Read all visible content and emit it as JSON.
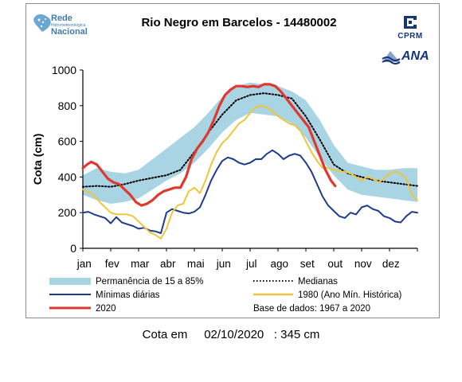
{
  "header": {
    "title": "Rio Negro em Barcelos - 14480002",
    "rede_logo": {
      "line1": "Rede",
      "line2": "Hidrometeorológica",
      "line3": "Nacional",
      "icon": "brazil-map-icon"
    },
    "cprm_logo": {
      "label": "CPRM",
      "icon": "cprm-emblem-icon",
      "color": "#15347a"
    },
    "ana_logo": {
      "label": "ANA",
      "icon": "ana-wave-icon",
      "color": "#15347a"
    }
  },
  "chart_data": {
    "type": "line",
    "title": "Rio Negro em Barcelos - 14480002",
    "ylabel": "Cota (cm)",
    "xlabel": "",
    "ylim": [
      0,
      1000
    ],
    "yticks": [
      0,
      200,
      400,
      600,
      800,
      1000
    ],
    "xlim": [
      0,
      12
    ],
    "months": [
      "jan",
      "fev",
      "mar",
      "abr",
      "mai",
      "jun",
      "jul",
      "ago",
      "set",
      "out",
      "nov",
      "dez"
    ],
    "band": {
      "name": "Permanência de 15 a 85%",
      "color": "#a9d4e4",
      "x": [
        0,
        0.5,
        1,
        1.5,
        2,
        2.5,
        3,
        3.5,
        4,
        4.5,
        5,
        5.5,
        6,
        6.5,
        7,
        7.5,
        8,
        8.5,
        9,
        9.5,
        10,
        10.5,
        11,
        11.5,
        12
      ],
      "upper": [
        410,
        450,
        430,
        420,
        440,
        500,
        560,
        620,
        680,
        760,
        850,
        910,
        930,
        920,
        910,
        880,
        830,
        720,
        580,
        480,
        460,
        440,
        440,
        450,
        450
      ],
      "lower": [
        300,
        270,
        250,
        260,
        280,
        330,
        380,
        420,
        480,
        560,
        650,
        720,
        760,
        750,
        740,
        700,
        620,
        510,
        410,
        330,
        300,
        290,
        280,
        270,
        260
      ]
    },
    "series": [
      {
        "name": "Medianas",
        "color": "#000000",
        "style": "dotted",
        "x": [
          0,
          0.5,
          1,
          1.5,
          2,
          2.5,
          3,
          3.5,
          4,
          4.5,
          5,
          5.5,
          6,
          6.5,
          7,
          7.5,
          8,
          8.5,
          9,
          9.5,
          10,
          10.5,
          11,
          11.5,
          12
        ],
        "y": [
          345,
          350,
          345,
          360,
          380,
          395,
          410,
          440,
          540,
          650,
          750,
          830,
          860,
          870,
          860,
          840,
          740,
          610,
          470,
          420,
          400,
          380,
          370,
          360,
          350
        ]
      },
      {
        "name": "Mínimas diárias",
        "color": "#1f3c8c",
        "style": "solid",
        "x": [
          0,
          0.2,
          0.4,
          0.6,
          0.8,
          1.0,
          1.2,
          1.4,
          1.6,
          1.8,
          2.0,
          2.2,
          2.4,
          2.6,
          2.8,
          3.0,
          3.2,
          3.4,
          3.6,
          3.8,
          4.0,
          4.2,
          4.4,
          4.6,
          4.8,
          5.0,
          5.2,
          5.4,
          5.6,
          5.8,
          6.0,
          6.2,
          6.4,
          6.6,
          6.8,
          7.0,
          7.2,
          7.4,
          7.6,
          7.8,
          8.0,
          8.2,
          8.4,
          8.6,
          8.8,
          9.0,
          9.2,
          9.4,
          9.6,
          9.8,
          10.0,
          10.2,
          10.4,
          10.6,
          10.8,
          11.0,
          11.2,
          11.4,
          11.6,
          11.8,
          12.0
        ],
        "y": [
          200,
          205,
          190,
          180,
          170,
          140,
          175,
          145,
          135,
          125,
          110,
          115,
          100,
          95,
          85,
          200,
          220,
          210,
          200,
          195,
          205,
          230,
          300,
          380,
          440,
          490,
          510,
          500,
          480,
          470,
          480,
          500,
          500,
          530,
          550,
          530,
          500,
          520,
          530,
          520,
          480,
          430,
          360,
          290,
          240,
          210,
          180,
          170,
          200,
          190,
          230,
          240,
          220,
          210,
          180,
          170,
          150,
          145,
          180,
          205,
          200
        ]
      },
      {
        "name": "1980 (Ano Mín. Histórica)",
        "color": "#f0c43c",
        "style": "solid",
        "x": [
          0,
          0.2,
          0.4,
          0.6,
          0.8,
          1.0,
          1.2,
          1.4,
          1.6,
          1.8,
          2.0,
          2.2,
          2.4,
          2.6,
          2.8,
          3.0,
          3.2,
          3.4,
          3.6,
          3.8,
          4.0,
          4.2,
          4.4,
          4.6,
          4.8,
          5.0,
          5.2,
          5.4,
          5.6,
          5.8,
          6.0,
          6.2,
          6.4,
          6.6,
          6.8,
          7.0,
          7.2,
          7.4,
          7.6,
          7.8,
          8.0,
          8.2,
          8.4,
          8.6,
          8.8,
          9.0,
          9.2,
          9.4,
          9.6,
          9.8,
          10.0,
          10.2,
          10.4,
          10.6,
          10.8,
          11.0,
          11.2,
          11.4,
          11.6,
          11.8,
          12.0
        ],
        "y": [
          330,
          315,
          300,
          260,
          230,
          200,
          190,
          190,
          190,
          180,
          150,
          120,
          90,
          75,
          55,
          110,
          200,
          240,
          250,
          320,
          340,
          310,
          380,
          470,
          540,
          590,
          620,
          660,
          700,
          720,
          760,
          790,
          800,
          790,
          770,
          740,
          720,
          700,
          690,
          660,
          600,
          540,
          490,
          450,
          450,
          440,
          430,
          430,
          420,
          400,
          380,
          400,
          390,
          370,
          390,
          420,
          430,
          420,
          390,
          300,
          270
        ]
      },
      {
        "name": "2020",
        "color": "#e0382c",
        "style": "solid",
        "x": [
          0,
          0.15,
          0.3,
          0.5,
          0.7,
          0.9,
          1.1,
          1.3,
          1.5,
          1.7,
          1.9,
          2.1,
          2.3,
          2.5,
          2.7,
          2.9,
          3.1,
          3.3,
          3.5,
          3.7,
          3.9,
          4.1,
          4.3,
          4.5,
          4.7,
          4.9,
          5.1,
          5.3,
          5.5,
          5.7,
          5.9,
          6.1,
          6.3,
          6.5,
          6.7,
          6.9,
          7.1,
          7.3,
          7.5,
          7.7,
          7.9,
          8.1,
          8.3,
          8.5,
          8.7,
          8.9,
          9.05
        ],
        "y": [
          450,
          470,
          485,
          470,
          430,
          390,
          370,
          360,
          330,
          300,
          260,
          240,
          250,
          270,
          300,
          320,
          330,
          340,
          340,
          400,
          500,
          560,
          600,
          650,
          720,
          800,
          860,
          890,
          910,
          910,
          905,
          910,
          905,
          920,
          920,
          910,
          880,
          840,
          800,
          760,
          720,
          680,
          600,
          520,
          440,
          380,
          350
        ]
      }
    ],
    "legend": {
      "placement": "bottom",
      "base_de_dados": "Base de dados: 1967 a 2020"
    }
  },
  "footer": {
    "label": "Cota em",
    "date": "02/10/2020",
    "value": ": 345 cm"
  }
}
